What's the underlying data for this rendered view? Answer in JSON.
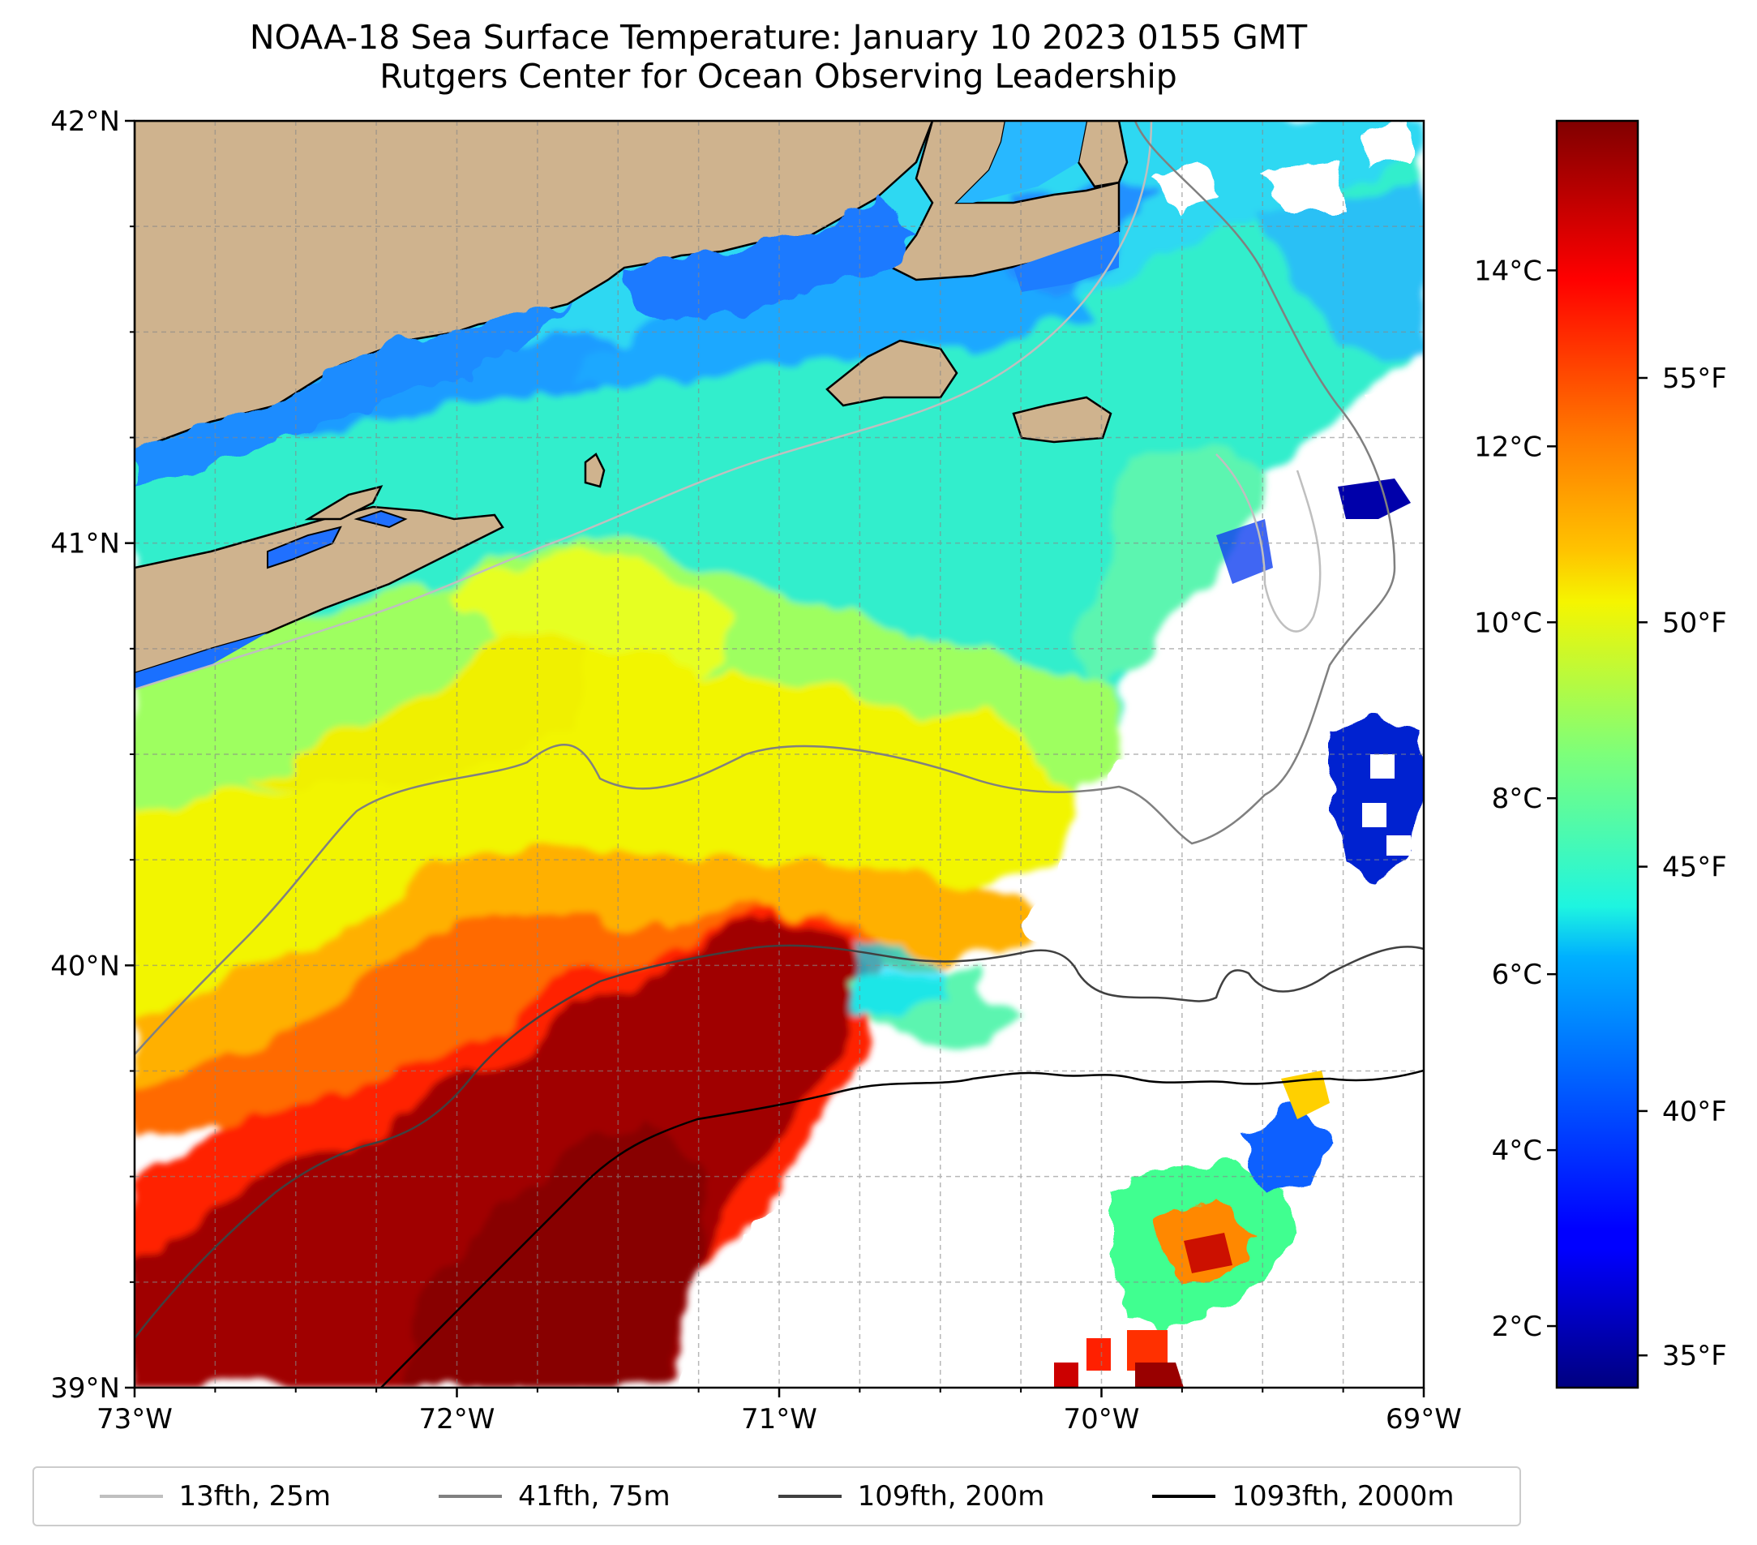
{
  "title": {
    "line1": "NOAA-18 Sea Surface Temperature: January 10 2023 0155 GMT",
    "line2": "Rutgers Center for Ocean Observing Leadership"
  },
  "map": {
    "lon_range": [
      -73,
      -69
    ],
    "lat_range": [
      39,
      42
    ],
    "land_color": "#cfb38e",
    "no_data_color": "#ffffff",
    "gridlines": true,
    "lat_ticks": [
      {
        "value": 42,
        "label": "42°N"
      },
      {
        "value": 41,
        "label": "41°N"
      },
      {
        "value": 40,
        "label": "40°N"
      },
      {
        "value": 39,
        "label": "39°N"
      }
    ],
    "lon_ticks": [
      {
        "value": -73,
        "label": "73°W"
      },
      {
        "value": -72,
        "label": "72°W"
      },
      {
        "value": -71,
        "label": "71°W"
      },
      {
        "value": -70,
        "label": "70°W"
      },
      {
        "value": -69,
        "label": "69°W"
      }
    ]
  },
  "colorbar": {
    "colormap": "jet",
    "range_c": [
      1.3,
      15.7
    ],
    "celsius_ticks": [
      {
        "value": 2,
        "label": "2°C"
      },
      {
        "value": 4,
        "label": "4°C"
      },
      {
        "value": 6,
        "label": "6°C"
      },
      {
        "value": 8,
        "label": "8°C"
      },
      {
        "value": 10,
        "label": "10°C"
      },
      {
        "value": 12,
        "label": "12°C"
      },
      {
        "value": 14,
        "label": "14°C"
      }
    ],
    "fahrenheit_ticks": [
      {
        "value": 35,
        "label": "35°F"
      },
      {
        "value": 40,
        "label": "40°F"
      },
      {
        "value": 45,
        "label": "45°F"
      },
      {
        "value": 50,
        "label": "50°F"
      },
      {
        "value": 55,
        "label": "55°F"
      }
    ]
  },
  "legend": {
    "placement": "bottom",
    "items": [
      {
        "label": "13fth, 25m",
        "color": "#bfbfbf"
      },
      {
        "label": "41fth, 75m",
        "color": "#808080"
      },
      {
        "label": "109fth, 200m",
        "color": "#404040"
      },
      {
        "label": "1093fth, 2000m",
        "color": "#000000"
      }
    ]
  }
}
